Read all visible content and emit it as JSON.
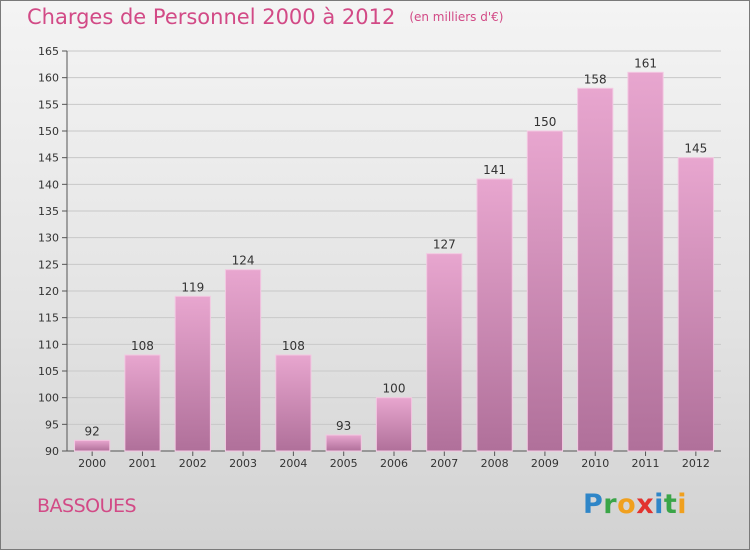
{
  "chart_data": {
    "type": "bar",
    "title": "Charges de Personnel 2000 à 2012",
    "subtitle": "(en milliers d'€)",
    "categories": [
      "2000",
      "2001",
      "2002",
      "2003",
      "2004",
      "2005",
      "2006",
      "2007",
      "2008",
      "2009",
      "2010",
      "2011",
      "2012"
    ],
    "values": [
      92,
      108,
      119,
      124,
      108,
      93,
      100,
      127,
      141,
      150,
      158,
      161,
      145
    ],
    "ylim": [
      90,
      165
    ],
    "yticks": [
      90,
      95,
      100,
      105,
      110,
      115,
      120,
      125,
      130,
      135,
      140,
      145,
      150,
      155,
      160,
      165
    ],
    "grid": true,
    "legend": "none",
    "colors": {
      "bar_top": "#e8a6cf",
      "bar_bottom": "#b0709a",
      "grid": "#c8c8c8",
      "title": "#d24a86"
    }
  },
  "footer": {
    "town": "BASSOUES",
    "brand": [
      "P",
      "r",
      "o",
      "x",
      "i",
      "t",
      "i"
    ]
  }
}
